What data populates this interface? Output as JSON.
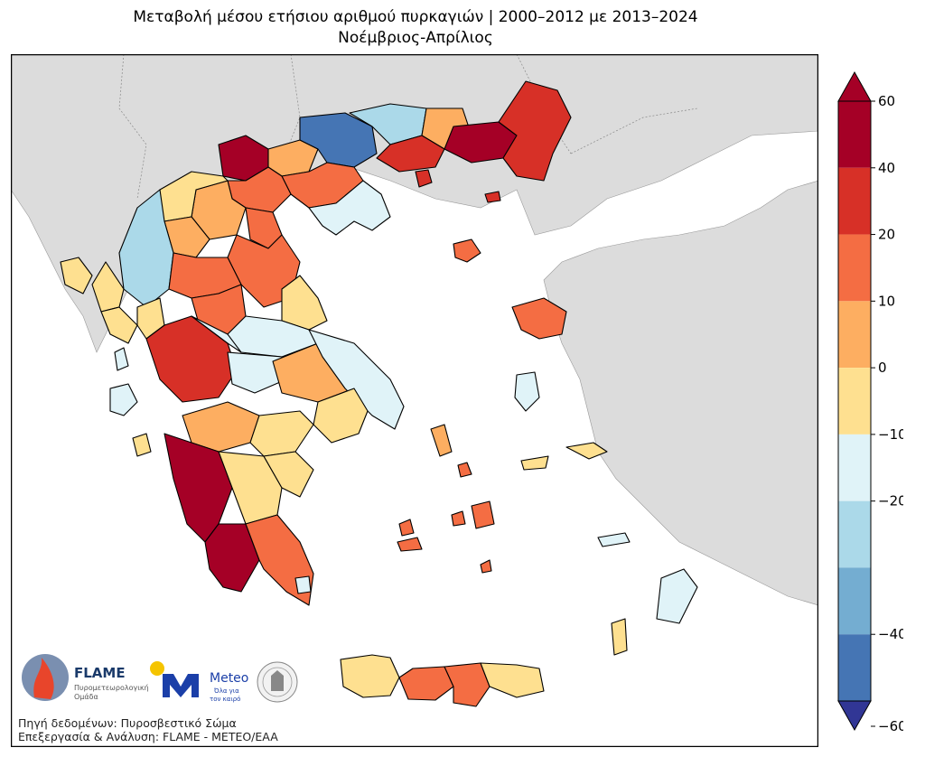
{
  "title": "Μεταβολή μέσου ετήσιου αριθμού πυρκαγιών | 2000–2012 με 2013–2024",
  "subtitle": "Νοέμβριος-Απρίλιος",
  "colorbar": {
    "ticks": [
      "60",
      "40",
      "20",
      "10",
      "0",
      "−10",
      "−20",
      "−40",
      "−60"
    ],
    "bins": [
      {
        "from": 40,
        "to": 60,
        "color": "#a50026"
      },
      {
        "from": 20,
        "to": 40,
        "color": "#d73027"
      },
      {
        "from": 10,
        "to": 20,
        "color": "#f46d43"
      },
      {
        "from": 0,
        "to": 10,
        "color": "#fdae61"
      },
      {
        "from": -10,
        "to": 0,
        "color": "#fee090"
      },
      {
        "from": -20,
        "to": -10,
        "color": "#e0f3f8"
      },
      {
        "from": -40,
        "to": -20,
        "color": "#abd9e9"
      },
      {
        "from": -60,
        "to": -40,
        "color": "#74add1"
      }
    ],
    "over_color": "#a50026",
    "under_color": "#313695",
    "extra_colors": {
      "minus40_60": "#4575b4"
    }
  },
  "colors": {
    "land_outside": "#dcdcdc",
    "sea": "#ffffff",
    "border": "#000000"
  },
  "logos": {
    "flame_title": "FLAME",
    "flame_sub1": "Πυρομετεωρολογική",
    "flame_sub2": "Ομάδα",
    "meteo_title": "Meteo",
    "meteo_sub1": "Όλα για",
    "meteo_sub2": "τον καιρό"
  },
  "source": "Πηγή δεδομένων: Πυροσβεστικό Σώμα",
  "processing": "Επεξεργασία & Ανάλυση: FLAME - METEO/EAA"
}
